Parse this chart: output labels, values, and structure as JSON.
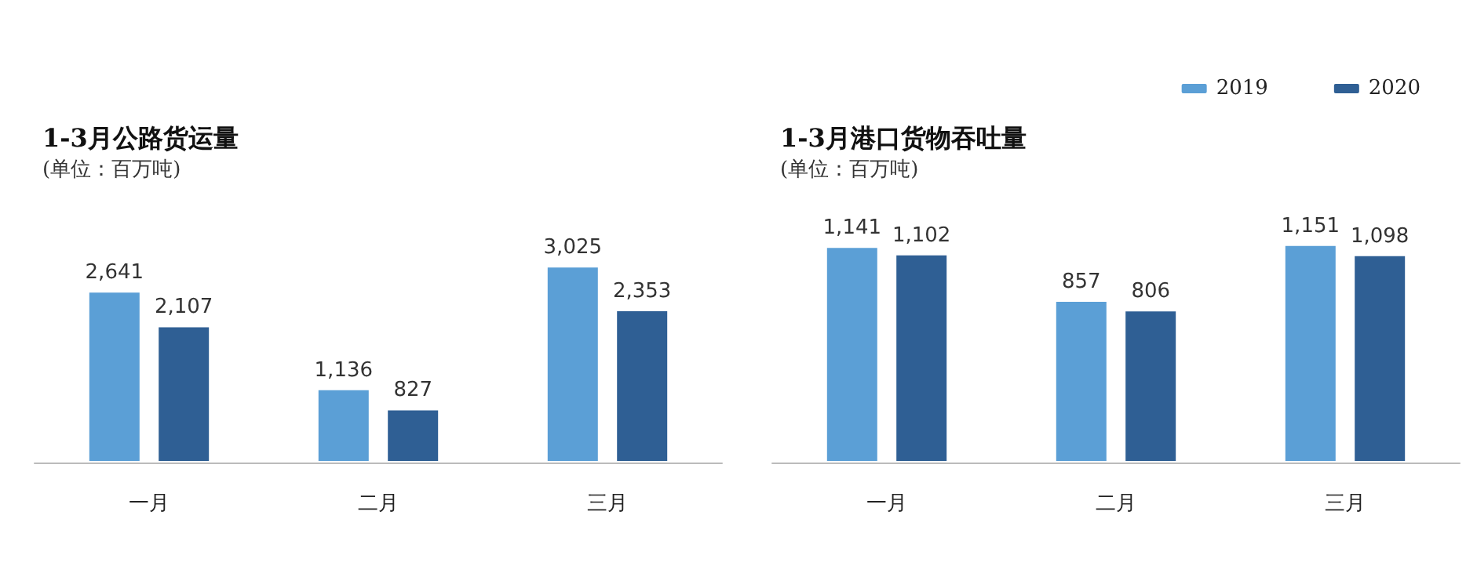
{
  "chart_data": [
    {
      "type": "bar",
      "title": "1-3月公路货运量",
      "subtitle": "(单位：百万吨)",
      "categories": [
        "一月",
        "二月",
        "三月"
      ],
      "series": [
        {
          "color": "#5b9fd6",
          "values": [
            2641,
            1136,
            3025
          ],
          "value_labels": [
            "2,641",
            "1,136",
            "3,025"
          ]
        },
        {
          "color": "#2f5f94",
          "values": [
            2107,
            827,
            2353
          ],
          "value_labels": [
            "2,107",
            "827",
            "2,353"
          ]
        }
      ],
      "legend": false
    },
    {
      "type": "bar",
      "title": "1-3月港口货物吞吐量",
      "subtitle": "(单位：百万吨)",
      "categories": [
        "一月",
        "二月",
        "三月"
      ],
      "series": [
        {
          "name": "2019",
          "color": "#5b9fd6",
          "values": [
            1141,
            857,
            1151
          ],
          "value_labels": [
            "1,141",
            "857",
            "1,151"
          ]
        },
        {
          "name": "2020",
          "color": "#2f5f94",
          "values": [
            1102,
            806,
            1098
          ],
          "value_labels": [
            "1,102",
            "806",
            "1,098"
          ]
        }
      ],
      "legend": "top right"
    }
  ]
}
